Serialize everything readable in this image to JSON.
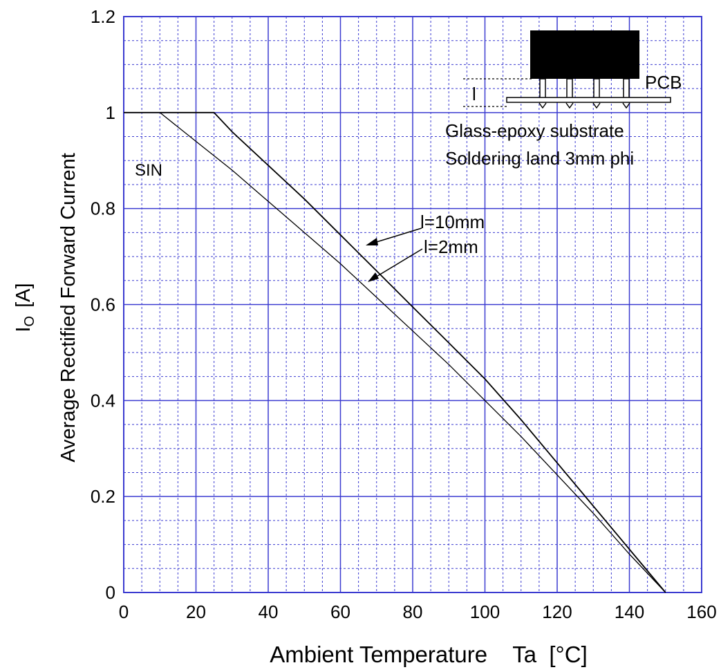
{
  "chart_data": {
    "type": "line",
    "xlabel": "Ambient Temperature    Ta  [°C]",
    "ylabel_symbol_main": "I",
    "ylabel_symbol_sub": "O",
    "ylabel_unit": "[A]",
    "ylabel_text": "Average Rectified Forward Current",
    "xlim": [
      0,
      160
    ],
    "ylim": [
      0,
      1.2
    ],
    "x_ticks": [
      0,
      20,
      40,
      60,
      80,
      100,
      120,
      140,
      160
    ],
    "x_tick_labels": [
      "0",
      "20",
      "40",
      "60",
      "80",
      "100",
      "120",
      "140",
      "160"
    ],
    "y_ticks": [
      0,
      0.2,
      0.4,
      0.6,
      0.8,
      1,
      1.2
    ],
    "y_tick_labels": [
      "0",
      "0.2",
      "0.4",
      "0.6",
      "0.8",
      "1",
      "1.2"
    ],
    "grid": true,
    "colors": {
      "grid": "#3a3ad0",
      "axes": "#3a3ad0",
      "curve": "#000000"
    },
    "series": [
      {
        "name": "l=10mm",
        "x": [
          0,
          25,
          30,
          40,
          50,
          60,
          70,
          80,
          90,
          100,
          110,
          120,
          130,
          140,
          150
        ],
        "y": [
          1.0,
          1.0,
          0.96,
          0.89,
          0.82,
          0.745,
          0.67,
          0.595,
          0.52,
          0.445,
          0.36,
          0.27,
          0.18,
          0.09,
          0.0
        ]
      },
      {
        "name": "l=2mm",
        "x": [
          0,
          10,
          20,
          30,
          40,
          50,
          60,
          70,
          80,
          90,
          100,
          110,
          120,
          130,
          140,
          150
        ],
        "y": [
          1.0,
          1.0,
          0.94,
          0.88,
          0.815,
          0.75,
          0.685,
          0.615,
          0.545,
          0.475,
          0.4,
          0.325,
          0.245,
          0.165,
          0.08,
          0.0
        ]
      }
    ],
    "annotations": {
      "waveform": "SIN",
      "label_l10": "l=10mm",
      "label_l2": "l=2mm",
      "substrate_line1": "Glass-epoxy substrate",
      "substrate_line2": "Soldering land 3mm phi",
      "pcb_label": "PCB",
      "lead_length_label": "l"
    }
  }
}
